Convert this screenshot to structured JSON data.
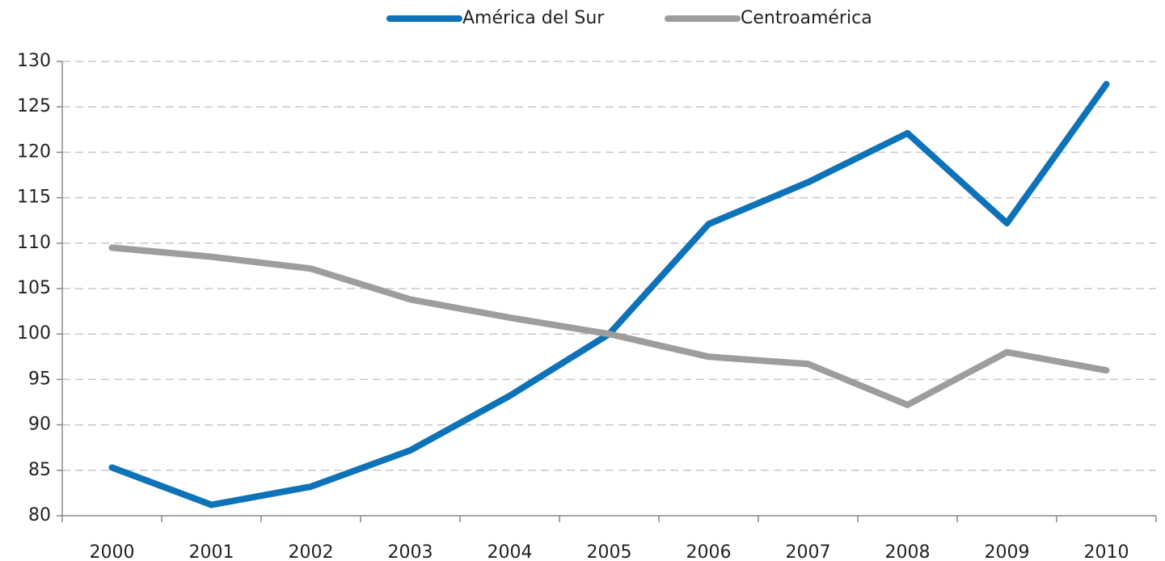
{
  "chart_data": {
    "type": "line",
    "categories": [
      "2000",
      "2001",
      "2002",
      "2003",
      "2004",
      "2005",
      "2006",
      "2007",
      "2008",
      "2009",
      "2010"
    ],
    "series": [
      {
        "name": "América del Sur",
        "color": "#0e72b9",
        "values": [
          85.3,
          81.2,
          83.2,
          87.2,
          93.2,
          100,
          112.1,
          116.7,
          122.1,
          112.2,
          127.5
        ]
      },
      {
        "name": "Centroamérica",
        "color": "#9d9d9d",
        "values": [
          109.5,
          108.5,
          107.2,
          103.8,
          101.8,
          100,
          97.5,
          96.7,
          92.2,
          98,
          96
        ]
      }
    ],
    "ylim": [
      80,
      130
    ],
    "yticks": [
      80,
      85,
      90,
      95,
      100,
      105,
      110,
      115,
      120,
      125,
      130
    ],
    "grid": true,
    "legend": "top"
  }
}
